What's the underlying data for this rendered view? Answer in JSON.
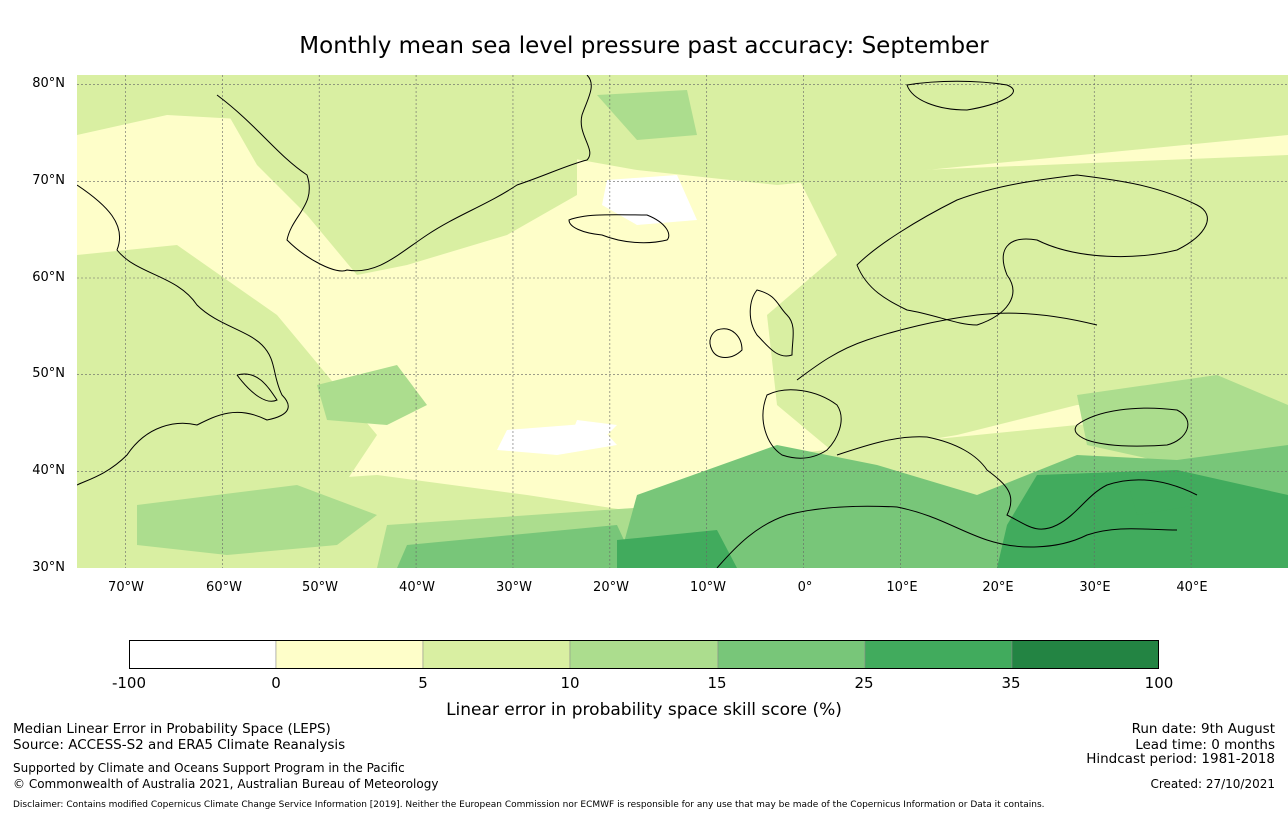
{
  "title": "Monthly mean sea level pressure past accuracy: September",
  "map": {
    "lat_labels": [
      "80°N",
      "70°N",
      "60°N",
      "50°N",
      "40°N",
      "30°N"
    ],
    "lon_labels": [
      "70°W",
      "60°W",
      "50°W",
      "40°W",
      "30°W",
      "20°W",
      "10°W",
      "0°",
      "10°E",
      "20°E",
      "30°E",
      "40°E"
    ],
    "lat_range": [
      30,
      81
    ],
    "lon_range": [
      -75,
      50
    ],
    "grid": true
  },
  "colorbar": {
    "ticks": [
      "-100",
      "0",
      "5",
      "10",
      "15",
      "25",
      "35",
      "100"
    ],
    "colors": [
      "#ffffff",
      "#fefec9",
      "#d9efa2",
      "#acdd8e",
      "#78c679",
      "#41ab5d",
      "#238443"
    ],
    "label": "Linear error in probability space skill score (%)"
  },
  "footer": {
    "line1": "Median Linear Error in Probability Space (LEPS)",
    "line2": "Source: ACCESS-S2 and ERA5 Climate Reanalysis",
    "line3": "Supported by Climate and Oceans Support Program in the Pacific",
    "line4": "© Commonwealth of Australia 2021, Australian Bureau of Meteorology",
    "run_date": "Run date: 9th August",
    "lead_time": "Lead time: 0 months",
    "hindcast": "Hindcast period: 1981-2018",
    "created": "Created: 27/10/2021",
    "disclaimer": "Disclaimer: Contains modified Copernicus Climate Change Service Information [2019]. Neither the European Commission nor ECMWF is responsible for any use that may be made of the Copernicus Information or Data it contains."
  }
}
